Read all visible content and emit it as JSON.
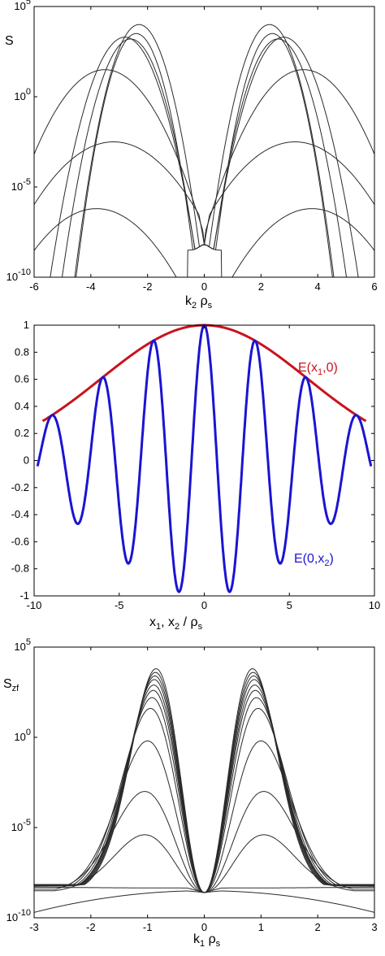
{
  "chart_data": [
    {
      "type": "line",
      "yscale": "log",
      "ylabel_main": "S",
      "xlabel_main": "k",
      "xlabel_sub1": "2",
      "xlabel_mid": " ρ",
      "xlabel_sub2": "s",
      "xlim": [
        -6,
        6
      ],
      "ylim_exp": [
        -10,
        5
      ],
      "xticks": [
        "-6",
        "-4",
        "-2",
        "0",
        "2",
        "4",
        "6"
      ],
      "yticks": [
        {
          "base": "10",
          "exp": "5",
          "v": 5
        },
        {
          "base": "10",
          "exp": "0",
          "v": 0
        },
        {
          "base": "10",
          "exp": "-5",
          "v": -5
        },
        {
          "base": "10",
          "exp": "-10",
          "v": -10
        }
      ],
      "grid": false,
      "series_color": "#2a2a2a",
      "series": [
        {
          "peak_x": 2.3,
          "peak_log": 4.0,
          "width": 1.05,
          "floor_log": -8.5
        },
        {
          "peak_x": 2.4,
          "peak_log": 3.5,
          "width": 1.0,
          "floor_log": -8.5
        },
        {
          "peak_x": 2.6,
          "peak_log": 3.2,
          "width": 1.15,
          "floor_log": -8.5
        },
        {
          "peak_x": 2.8,
          "peak_log": 3.3,
          "width": 1.25,
          "floor_log": -8.5
        },
        {
          "peak_x": 3.5,
          "peak_log": 1.5,
          "width": 2.0,
          "floor_log": -8.5
        },
        {
          "peak_x": 3.2,
          "peak_log": -2.5,
          "width": 2.6,
          "floor_log": -8.5
        },
        {
          "peak_x": 3.8,
          "peak_log": -6.2,
          "width": 2.5,
          "floor_log": -8.5
        }
      ]
    },
    {
      "type": "line",
      "xlabel_x1": "x",
      "xlabel_sub1": "1",
      "xlabel_sep": ",  x",
      "xlabel_sub2": "2",
      "xlabel_slash": "  / ρ",
      "xlabel_sub3": "s",
      "xlim": [
        -10,
        10
      ],
      "ylim": [
        -1,
        1
      ],
      "xticks": [
        "-10",
        "-5",
        "0",
        "5",
        "10"
      ],
      "yticks": [
        "1",
        "0.8",
        "0.6",
        "0.4",
        "0.2",
        "0",
        "-0.2",
        "-0.4",
        "-0.6",
        "-0.8",
        "-1"
      ],
      "grid": false,
      "series": [
        {
          "name_pre": "E(x",
          "name_sub": "1",
          "name_post": ",0)",
          "color": "#c8141e",
          "sigma": 6.05,
          "range": [
            -9.5,
            9.5
          ]
        },
        {
          "name_pre": "E(0,x",
          "name_sub": "2",
          "name_post": ")",
          "color": "#1a14d2",
          "sigma": 6.05,
          "k": 2.1,
          "range": [
            -9.8,
            9.8
          ]
        }
      ]
    },
    {
      "type": "line",
      "yscale": "log",
      "ylabel_main": "S",
      "ylabel_sub": "zf",
      "xlabel_main": "k",
      "xlabel_sub1": "1",
      "xlabel_mid": " ρ",
      "xlabel_sub2": "s",
      "xlim": [
        -3,
        3
      ],
      "ylim_exp": [
        -10,
        5
      ],
      "xticks": [
        "-3",
        "-2",
        "-1",
        "0",
        "1",
        "2",
        "3"
      ],
      "yticks": [
        {
          "base": "10",
          "exp": "5",
          "v": 5
        },
        {
          "base": "10",
          "exp": "0",
          "v": 0
        },
        {
          "base": "10",
          "exp": "-5",
          "v": -5
        },
        {
          "base": "10",
          "exp": "-10",
          "v": -10
        }
      ],
      "grid": false,
      "series_color": "#2a2a2a",
      "series": [
        {
          "peak_x": 0.85,
          "peak_log": 3.8
        },
        {
          "peak_x": 0.86,
          "peak_log": 3.6
        },
        {
          "peak_x": 0.87,
          "peak_log": 3.4
        },
        {
          "peak_x": 0.88,
          "peak_log": 3.2
        },
        {
          "peak_x": 0.89,
          "peak_log": 2.9
        },
        {
          "peak_x": 0.9,
          "peak_log": 2.6
        },
        {
          "peak_x": 0.92,
          "peak_log": 2.2
        },
        {
          "peak_x": 0.95,
          "peak_log": 1.6
        },
        {
          "peak_x": 1.0,
          "peak_log": -0.2
        },
        {
          "peak_x": 1.05,
          "peak_log": -3.0
        },
        {
          "peak_x": 1.05,
          "peak_log": -5.4
        },
        {
          "peak_x": 1.1,
          "peak_log": -8.5,
          "flat": true
        },
        {
          "peak_x": 1.1,
          "peak_log": -8.5,
          "flat": true,
          "end_log": -9.7
        }
      ]
    }
  ]
}
